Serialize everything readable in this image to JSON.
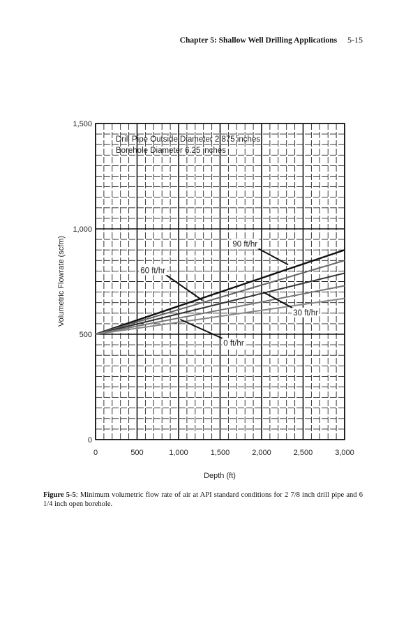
{
  "header": {
    "chapter_title": "Chapter 5: Shallow Well Drilling Applications",
    "page_number": "5-15"
  },
  "chart_data": {
    "type": "line",
    "xlabel": "Depth (ft)",
    "ylabel": "Volumetric Flowrate (scfm)",
    "xlim": [
      0,
      3000
    ],
    "ylim": [
      0,
      1500
    ],
    "x_ticks": [
      0,
      500,
      1000,
      1500,
      2000,
      2500,
      3000
    ],
    "x_tick_labels": [
      "0",
      "500",
      "1,000",
      "1,500",
      "2,000",
      "2,500",
      "3,000"
    ],
    "y_ticks": [
      0,
      500,
      1000,
      1500
    ],
    "y_tick_labels": [
      "0",
      "500",
      "1,000",
      "1,500"
    ],
    "grid": true,
    "annotations": {
      "line1": "Drill Pipe Outside Diameter 2.875 inches",
      "line2": "Borehole Diameter 6.25 inches"
    },
    "x": [
      0,
      3000
    ],
    "series": [
      {
        "name": "90 ft/hr",
        "values": [
          500,
          900
        ],
        "color": "#111111"
      },
      {
        "name": "60 ft/hr",
        "values": [
          500,
          850
        ],
        "color": "#666666"
      },
      {
        "name": "",
        "values": [
          500,
          790
        ],
        "color": "#333333"
      },
      {
        "name": "30 ft/hr",
        "values": [
          500,
          730
        ],
        "color": "#777777"
      },
      {
        "name": "0 ft/hr",
        "values": [
          500,
          670
        ],
        "color": "#888888"
      }
    ],
    "series_labels": [
      {
        "text": "90 ft/hr",
        "at_x": 1650,
        "at_y": 915,
        "points_to": [
          2320,
          830
        ]
      },
      {
        "text": "60 ft/hr",
        "at_x": 540,
        "at_y": 790,
        "points_to": [
          1290,
          660
        ]
      },
      {
        "text": "30 ft/hr",
        "at_x": 2380,
        "at_y": 590,
        "points_to": [
          2020,
          700
        ]
      },
      {
        "text": "0 ft/hr",
        "at_x": 1540,
        "at_y": 445,
        "points_to": [
          1020,
          570
        ]
      }
    ]
  },
  "caption": {
    "label": "Figure 5-5",
    "text": ": Minimum volumetric flow rate of air at API standard conditions for 2 7/8 inch drill pipe and 6 1/4 inch open borehole."
  }
}
